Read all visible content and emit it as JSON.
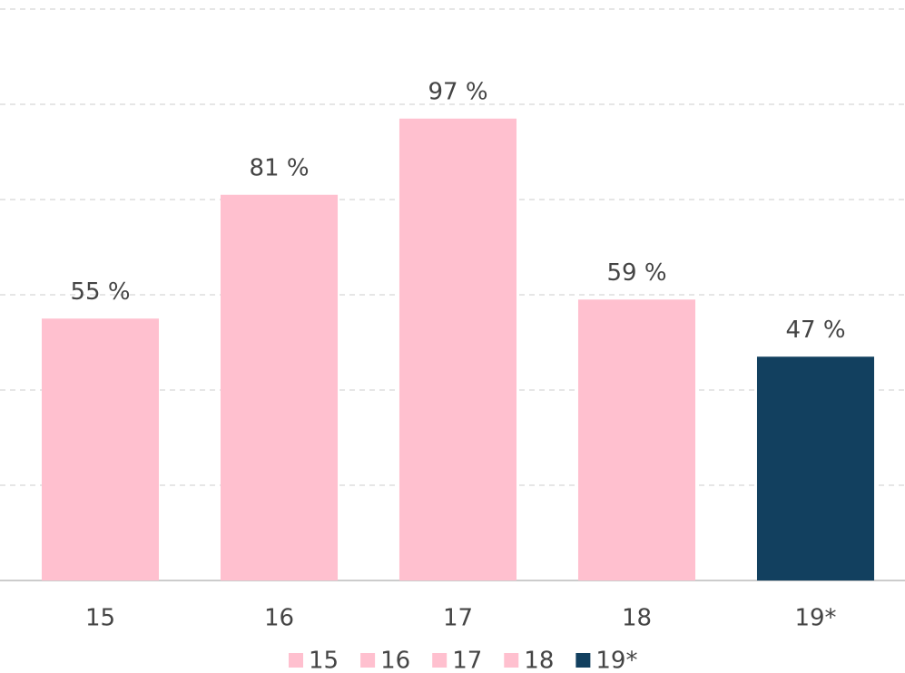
{
  "chart_data": {
    "type": "bar",
    "categories": [
      "15",
      "16",
      "17",
      "18",
      "19*"
    ],
    "values": [
      55,
      81,
      97,
      59,
      47
    ],
    "value_labels": [
      "55 %",
      "81 %",
      "97 %",
      "59 %",
      "47 %"
    ],
    "colors": [
      "#ffc0cf",
      "#ffc0cf",
      "#ffc0cf",
      "#ffc0cf",
      "#12405f"
    ],
    "ylim": [
      0,
      120
    ],
    "yticks": [
      0,
      20,
      40,
      60,
      80,
      100,
      120
    ],
    "grid": true,
    "legend": "bottom"
  }
}
